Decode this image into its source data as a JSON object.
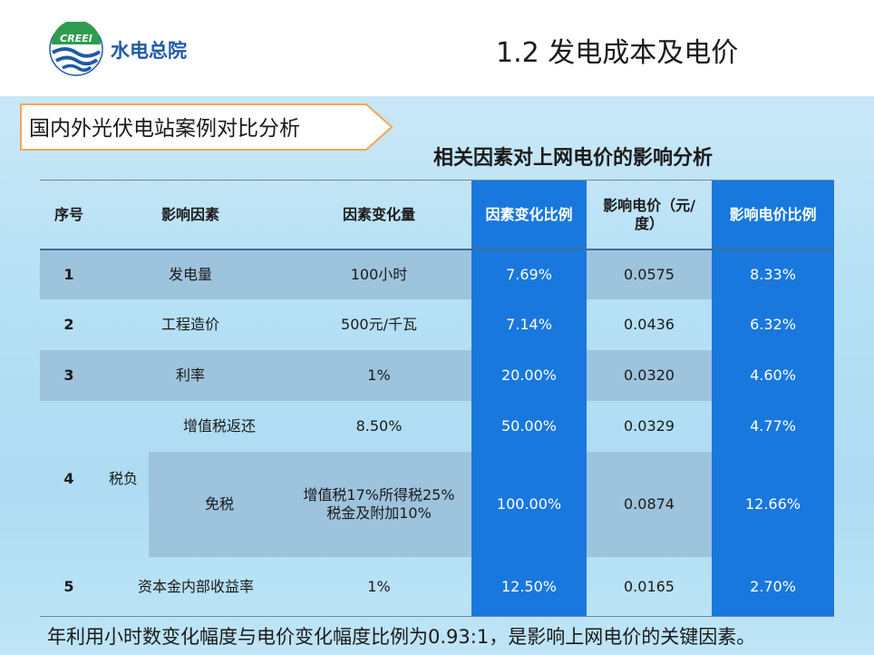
{
  "header": {
    "org_name": "水电总院",
    "logo_text": "CREEI",
    "slide_title": "1.2 发电成本及电价"
  },
  "section_label": "国内外光伏电站案例对比分析",
  "table_title": "相关因素对上网电价的影响分析",
  "table": {
    "headers": [
      "序号",
      "影响因素",
      "因素变化量",
      "因素变化比例",
      "影响电价（元/度）",
      "影响电价比例"
    ],
    "rows": [
      {
        "index": "1",
        "factor": "发电量",
        "change": "100小时",
        "ratio": "7.69%",
        "price": "0.0575",
        "price_ratio": "8.33%"
      },
      {
        "index": "2",
        "factor": "工程造价",
        "change": "500元/千瓦",
        "ratio": "7.14%",
        "price": "0.0436",
        "price_ratio": "6.32%"
      },
      {
        "index": "3",
        "factor": "利率",
        "change": "1%",
        "ratio": "20.00%",
        "price": "0.0320",
        "price_ratio": "4.60%"
      },
      {
        "index": "4",
        "factor": "税负",
        "sub": [
          {
            "factor": "增值税返还",
            "change": "8.50%",
            "ratio": "50.00%",
            "price": "0.0329",
            "price_ratio": "4.77%"
          },
          {
            "factor": "免税",
            "change_line1": "增值税17%所得税25%",
            "change_line2": "税金及附加10%",
            "ratio": "100.00%",
            "price": "0.0874",
            "price_ratio": "12.66%"
          }
        ]
      },
      {
        "index": "5",
        "factor": "资本金内部收益率",
        "change": "1%",
        "ratio": "12.50%",
        "price": "0.0165",
        "price_ratio": "2.70%"
      }
    ]
  },
  "footer_note": "年利用小时数变化幅度与电价变化幅度比例为0.93:1，是影响上网电价的关键因素。",
  "colors": {
    "accent_blue": "#1978de",
    "band": "#9ec3dd",
    "background": "#b6e0f5",
    "label_border": "#f2a55a"
  }
}
